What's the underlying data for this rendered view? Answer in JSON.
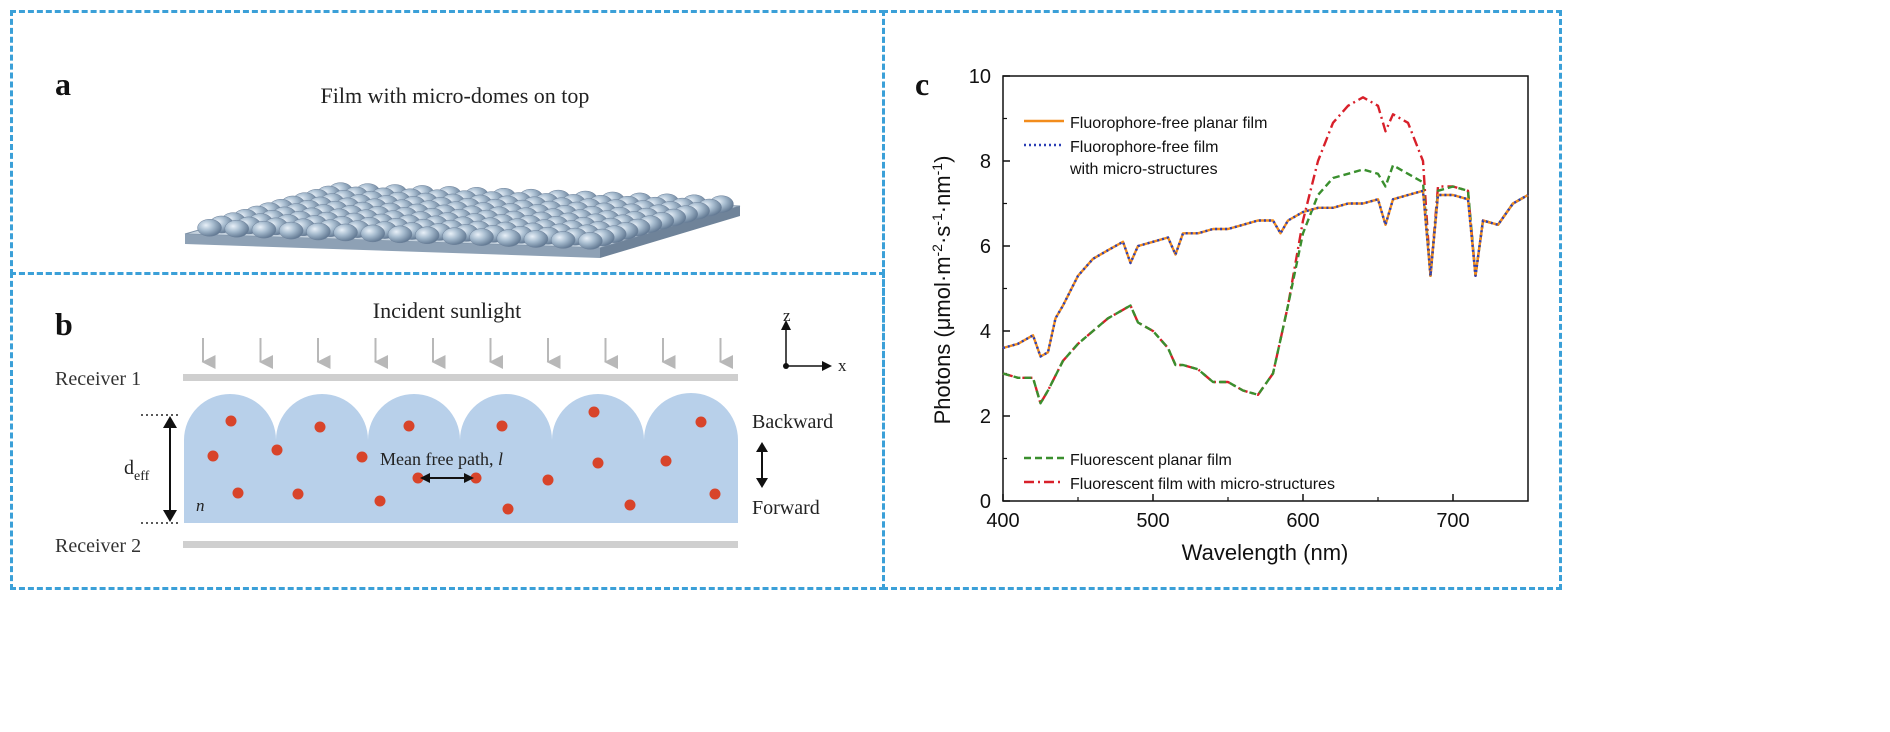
{
  "panel_a": {
    "letter": "a",
    "title": "Film with micro-domes  on top"
  },
  "panel_b": {
    "letter": "b",
    "incident_label": "Incident sunlight",
    "receiver_1": "Receiver 1",
    "receiver_2": "Receiver 2",
    "deff_main": "d",
    "deff_sub": "eff",
    "n_label": "n",
    "mfp_label": "Mean  free path, ",
    "mfp_symbol": "l",
    "axis_z": "z",
    "axis_x": "x",
    "backward": "Backward",
    "forward": "Forward"
  },
  "panel_c": {
    "letter": "c",
    "chart_data": {
      "type": "line",
      "xlabel": "Wavelength (nm)",
      "ylabel_main": "Photons (μmol·m",
      "ylabel_exp1": "-2",
      "ylabel_mid1": "·s",
      "ylabel_exp2": "-1",
      "ylabel_mid2": "·nm",
      "ylabel_exp3": "-1",
      "ylabel_end": ")",
      "xlim": [
        400,
        750
      ],
      "ylim": [
        0,
        10
      ],
      "xticks": [
        400,
        500,
        600,
        700
      ],
      "yticks": [
        0,
        2,
        4,
        6,
        8,
        10
      ],
      "legend_top": [
        {
          "name": "Fluorophore-free planar film",
          "color": "#f28c1c",
          "dash": "solid"
        },
        {
          "name": "Fluorophore-free film",
          "name2": "with micro-structures",
          "color": "#2b3fb5",
          "dash": "dotted"
        }
      ],
      "legend_bottom": [
        {
          "name": "Fluorescent planar film",
          "color": "#3a8f2e",
          "dash": "dashed"
        },
        {
          "name": "Fluorescent film with micro-structures",
          "color": "#d8202a",
          "dash": "dashdot"
        }
      ],
      "series": [
        {
          "name": "Fluorophore-free planar film",
          "color": "#f28c1c",
          "x": [
            400,
            410,
            420,
            425,
            430,
            435,
            440,
            450,
            460,
            470,
            480,
            485,
            490,
            500,
            510,
            515,
            520,
            530,
            540,
            550,
            560,
            570,
            580,
            585,
            590,
            600,
            610,
            620,
            630,
            640,
            650,
            655,
            660,
            670,
            680,
            685,
            690,
            700,
            710,
            715,
            720,
            730,
            740,
            750
          ],
          "y": [
            3.6,
            3.7,
            3.9,
            3.4,
            3.5,
            4.3,
            4.6,
            5.3,
            5.7,
            5.9,
            6.1,
            5.6,
            6.0,
            6.1,
            6.2,
            5.8,
            6.3,
            6.3,
            6.4,
            6.4,
            6.5,
            6.6,
            6.6,
            6.3,
            6.6,
            6.8,
            6.9,
            6.9,
            7.0,
            7.0,
            7.1,
            6.5,
            7.1,
            7.2,
            7.3,
            5.3,
            7.2,
            7.2,
            7.1,
            5.3,
            6.6,
            6.5,
            7.0,
            7.2
          ]
        },
        {
          "name": "Fluorophore-free film with micro-structures",
          "color": "#2b3fb5",
          "x": [
            400,
            410,
            420,
            425,
            430,
            435,
            440,
            450,
            460,
            470,
            480,
            485,
            490,
            500,
            510,
            515,
            520,
            530,
            540,
            550,
            560,
            570,
            580,
            585,
            590,
            600,
            610,
            620,
            630,
            640,
            650,
            655,
            660,
            670,
            680,
            685,
            690,
            700,
            710,
            715,
            720,
            730,
            740,
            750
          ],
          "y": [
            3.6,
            3.7,
            3.9,
            3.4,
            3.5,
            4.3,
            4.6,
            5.3,
            5.7,
            5.9,
            6.1,
            5.6,
            6.0,
            6.1,
            6.2,
            5.8,
            6.3,
            6.3,
            6.4,
            6.4,
            6.5,
            6.6,
            6.6,
            6.3,
            6.6,
            6.8,
            6.9,
            6.9,
            7.0,
            7.0,
            7.1,
            6.5,
            7.1,
            7.2,
            7.3,
            5.3,
            7.2,
            7.2,
            7.1,
            5.3,
            6.6,
            6.5,
            7.0,
            7.2
          ]
        },
        {
          "name": "Fluorescent planar film",
          "color": "#3a8f2e",
          "x": [
            400,
            410,
            420,
            425,
            430,
            440,
            450,
            460,
            470,
            480,
            485,
            490,
            500,
            510,
            515,
            520,
            530,
            540,
            550,
            560,
            570,
            580,
            590,
            600,
            610,
            620,
            630,
            640,
            650,
            655,
            660,
            670,
            680,
            685,
            690,
            700,
            710,
            715,
            720,
            730,
            740,
            750
          ],
          "y": [
            3.0,
            2.9,
            2.9,
            2.3,
            2.6,
            3.3,
            3.7,
            4.0,
            4.3,
            4.5,
            4.6,
            4.2,
            4.0,
            3.6,
            3.2,
            3.2,
            3.1,
            2.8,
            2.8,
            2.6,
            2.5,
            3.0,
            4.6,
            6.3,
            7.2,
            7.6,
            7.7,
            7.8,
            7.7,
            7.4,
            7.9,
            7.7,
            7.5,
            5.3,
            7.3,
            7.4,
            7.3,
            5.3,
            6.6,
            6.5,
            7.0,
            7.2
          ]
        },
        {
          "name": "Fluorescent film with micro-structures",
          "color": "#d8202a",
          "x": [
            400,
            410,
            420,
            425,
            430,
            440,
            450,
            460,
            470,
            480,
            485,
            490,
            500,
            510,
            515,
            520,
            530,
            540,
            550,
            560,
            570,
            580,
            590,
            600,
            610,
            620,
            630,
            640,
            650,
            655,
            660,
            670,
            680,
            685,
            690,
            700,
            710,
            715,
            720,
            730,
            740,
            750
          ],
          "y": [
            3.0,
            2.9,
            2.9,
            2.3,
            2.6,
            3.3,
            3.7,
            4.0,
            4.3,
            4.5,
            4.6,
            4.2,
            4.0,
            3.6,
            3.2,
            3.2,
            3.1,
            2.8,
            2.8,
            2.6,
            2.5,
            3.0,
            4.6,
            6.6,
            8.0,
            8.9,
            9.3,
            9.5,
            9.3,
            8.7,
            9.1,
            8.9,
            8.0,
            5.3,
            7.4,
            7.4,
            7.3,
            5.3,
            6.6,
            6.5,
            7.0,
            7.2
          ]
        }
      ]
    }
  }
}
